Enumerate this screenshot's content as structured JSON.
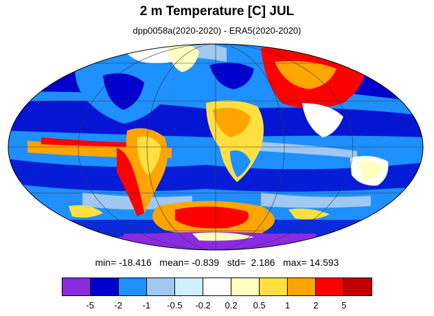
{
  "title": "2 m Temperature [C] JUL",
  "subtitle": "dpp0058a(2020-2020) - ERA5(2020-2020)",
  "stats": {
    "min_label": "min=",
    "min": "-18.416",
    "mean_label": "mean=",
    "mean": "-0.839",
    "std_label": "std=",
    "std": "2.186",
    "max_label": "max=",
    "max": "14.593"
  },
  "colorbar": {
    "colors": [
      "#8a2be2",
      "#0000cd",
      "#1e90ff",
      "#a0c8f0",
      "#d0f0ff",
      "#ffffff",
      "#ffffc0",
      "#ffe040",
      "#ffa500",
      "#ff0000",
      "#c00000"
    ],
    "ticks": [
      "-5",
      "-2",
      "-1",
      "-0.5",
      "-0.2",
      "0.2",
      "0.5",
      "1",
      "2",
      "5"
    ]
  },
  "map": {
    "projection": "mollweide",
    "background_color": "#1e90ff"
  }
}
